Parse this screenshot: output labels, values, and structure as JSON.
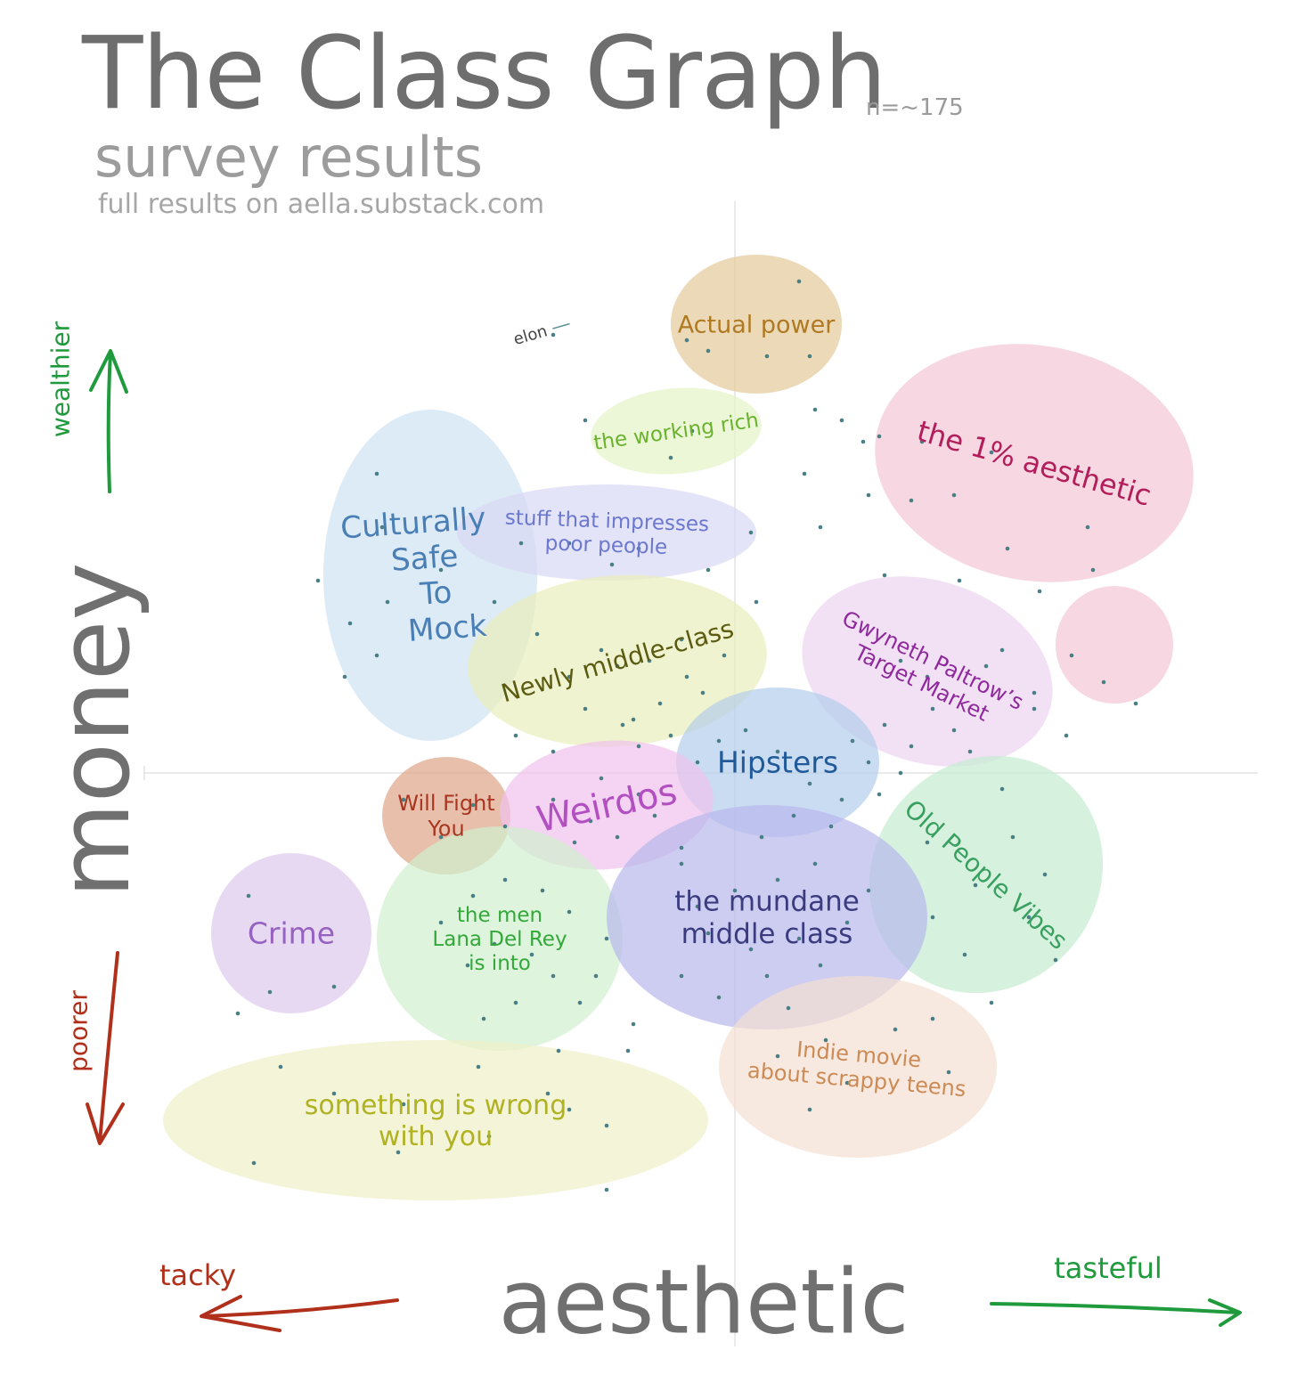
{
  "header": {
    "title": "The Class Graph",
    "n_count": "n=~175",
    "subtitle": "survey results",
    "source": "full results on aella.substack.com"
  },
  "axes": {
    "y_title": "money",
    "x_title": "aesthetic",
    "y_up_label": "wealthier",
    "y_down_label": "poorer",
    "x_left_label": "tacky",
    "x_right_label": "tasteful",
    "up_color": "#1f9a3c",
    "down_color": "#b0301b"
  },
  "chart_data": {
    "type": "scatter",
    "title": "The Class Graph",
    "subtitle": "survey results",
    "xlabel": "aesthetic",
    "ylabel": "money",
    "xlim": [
      -1,
      1
    ],
    "ylim": [
      -1,
      1
    ],
    "grid": false,
    "clusters": [
      {
        "id": "actual-power",
        "label": [
          "Actual power"
        ],
        "color": "#e3c999",
        "text_color": "#b07a22",
        "cx": 0.04,
        "cy": 0.84,
        "rx": 0.16,
        "ry": 0.13,
        "rot": 0
      },
      {
        "id": "working-rich",
        "label": [
          "the working rich"
        ],
        "color": "#e2f4c4",
        "text_color": "#6bb22f",
        "cx": -0.11,
        "cy": 0.64,
        "rx": 0.16,
        "ry": 0.08,
        "rot": -5
      },
      {
        "id": "one-percent",
        "label": [
          "the 1% aesthetic"
        ],
        "color": "#f2c6d5",
        "text_color": "#b21e5a",
        "cx": 0.56,
        "cy": 0.58,
        "rx": 0.3,
        "ry": 0.22,
        "rot": 10
      },
      {
        "id": "one-percent-blob",
        "label": [],
        "color": "#f2c6d5",
        "text_color": "#b21e5a",
        "cx": 0.71,
        "cy": 0.24,
        "rx": 0.11,
        "ry": 0.11,
        "rot": 0
      },
      {
        "id": "culturally-safe",
        "label": [
          "Culturally",
          "Safe",
          "To",
          "Mock"
        ],
        "color": "#cfe3f2",
        "text_color": "#4a7fb6",
        "cx": -0.57,
        "cy": 0.37,
        "rx": 0.2,
        "ry": 0.31,
        "rot": 0
      },
      {
        "id": "impresses-poor",
        "label": [
          "stuff that impresses",
          "poor people"
        ],
        "color": "#d8d8f5",
        "text_color": "#6c78cf",
        "cx": -0.24,
        "cy": 0.45,
        "rx": 0.28,
        "ry": 0.09,
        "rot": 0
      },
      {
        "id": "newly-middle",
        "label": [
          "Newly middle-class"
        ],
        "color": "#eaeebb",
        "text_color": "#5b5b12",
        "cx": -0.22,
        "cy": 0.21,
        "rx": 0.28,
        "ry": 0.16,
        "rot": -4
      },
      {
        "id": "gwyneth",
        "label": [
          "Gwyneth Paltrow’s",
          "Target Market"
        ],
        "color": "#ecd3ef",
        "text_color": "#8e2a9c",
        "cx": 0.36,
        "cy": 0.19,
        "rx": 0.24,
        "ry": 0.17,
        "rot": 18
      },
      {
        "id": "hipsters",
        "label": [
          "Hipsters"
        ],
        "color": "#b4cdeb",
        "text_color": "#215a98",
        "cx": 0.08,
        "cy": 0.02,
        "rx": 0.19,
        "ry": 0.14,
        "rot": 0
      },
      {
        "id": "will-fight",
        "label": [
          "Will Fight",
          "You"
        ],
        "color": "#dda487",
        "text_color": "#a83620",
        "cx": -0.54,
        "cy": -0.08,
        "rx": 0.12,
        "ry": 0.11,
        "rot": 0
      },
      {
        "id": "weirdos",
        "label": [
          "Weirdos"
        ],
        "color": "#f0c2ec",
        "text_color": "#b24fc1",
        "cx": -0.24,
        "cy": -0.06,
        "rx": 0.2,
        "ry": 0.12,
        "rot": -5
      },
      {
        "id": "old-people",
        "label": [
          "Old People Vibes"
        ],
        "color": "#c4ecd2",
        "text_color": "#3aa060",
        "cx": 0.47,
        "cy": -0.19,
        "rx": 0.21,
        "ry": 0.23,
        "rot": 40
      },
      {
        "id": "crime",
        "label": [
          "Crime"
        ],
        "color": "#ddc9ed",
        "text_color": "#9562c2",
        "cx": -0.83,
        "cy": -0.3,
        "rx": 0.15,
        "ry": 0.15,
        "rot": 0
      },
      {
        "id": "lana-del-rey",
        "label": [
          "the men",
          "Lana Del Rey",
          "is into"
        ],
        "color": "#d0efcd",
        "text_color": "#34a83a",
        "cx": -0.44,
        "cy": -0.31,
        "rx": 0.23,
        "ry": 0.21,
        "rot": 0
      },
      {
        "id": "mundane-middle",
        "label": [
          "the mundane",
          "middle class"
        ],
        "color": "#b8b8ec",
        "text_color": "#3b3b80",
        "cx": 0.06,
        "cy": -0.27,
        "rx": 0.3,
        "ry": 0.21,
        "rot": 0
      },
      {
        "id": "indie-movie",
        "label": [
          "Indie movie",
          "about scrappy teens"
        ],
        "color": "#f4dfd2",
        "text_color": "#cc8a55",
        "cx": 0.23,
        "cy": -0.55,
        "rx": 0.26,
        "ry": 0.17,
        "rot": 0
      },
      {
        "id": "something-wrong",
        "label": [
          "something is wrong",
          "with you"
        ],
        "color": "#f0f0c8",
        "text_color": "#b0b221",
        "cx": -0.56,
        "cy": -0.65,
        "rx": 0.51,
        "ry": 0.15,
        "rot": 0
      }
    ],
    "annotations": [
      {
        "text": "elon",
        "x": -0.38,
        "y": 0.81
      }
    ],
    "point_color": "#4a7f86",
    "points": [
      [
        -0.34,
        0.82
      ],
      [
        0.12,
        0.92
      ],
      [
        -0.05,
        0.79
      ],
      [
        0.06,
        0.78
      ],
      [
        -0.09,
        0.81
      ],
      [
        0.14,
        0.78
      ],
      [
        -0.28,
        0.66
      ],
      [
        -0.12,
        0.59
      ],
      [
        -0.08,
        0.64
      ],
      [
        0.15,
        0.68
      ],
      [
        0.2,
        0.66
      ],
      [
        0.27,
        0.63
      ],
      [
        0.41,
        0.52
      ],
      [
        0.13,
        0.56
      ],
      [
        0.24,
        0.62
      ],
      [
        0.35,
        0.62
      ],
      [
        0.48,
        0.6
      ],
      [
        0.33,
        0.51
      ],
      [
        0.25,
        0.52
      ],
      [
        0.16,
        0.46
      ],
      [
        0.28,
        0.37
      ],
      [
        0.66,
        0.46
      ],
      [
        0.51,
        0.42
      ],
      [
        0.42,
        0.36
      ],
      [
        0.67,
        0.38
      ],
      [
        0.57,
        0.34
      ],
      [
        -0.67,
        0.56
      ],
      [
        -0.66,
        0.46
      ],
      [
        -0.65,
        0.32
      ],
      [
        -0.73,
        0.18
      ],
      [
        -0.67,
        0.22
      ],
      [
        -0.78,
        0.36
      ],
      [
        -0.72,
        0.28
      ],
      [
        -0.55,
        0.38
      ],
      [
        -0.4,
        0.43
      ],
      [
        -0.31,
        0.43
      ],
      [
        -0.18,
        0.42
      ],
      [
        -0.23,
        0.39
      ],
      [
        -0.05,
        0.38
      ],
      [
        0.03,
        0.45
      ],
      [
        -0.45,
        0.32
      ],
      [
        -0.37,
        0.26
      ],
      [
        -0.31,
        0.18
      ],
      [
        -0.25,
        0.23
      ],
      [
        -0.21,
        0.09
      ],
      [
        -0.14,
        0.13
      ],
      [
        -0.22,
        0.2
      ],
      [
        -0.09,
        0.18
      ],
      [
        -0.06,
        0.15
      ],
      [
        -0.28,
        0.12
      ],
      [
        -0.34,
        0.04
      ],
      [
        -0.19,
        0.1
      ],
      [
        -0.12,
        0.07
      ],
      [
        -0.41,
        0.07
      ],
      [
        -0.1,
        0.25
      ],
      [
        -0.16,
        0.21
      ],
      [
        -0.02,
        0.22
      ],
      [
        -0.18,
        0.05
      ],
      [
        0.04,
        0.32
      ],
      [
        -0.03,
        0.06
      ],
      [
        -0.07,
        0.02
      ],
      [
        0.31,
        0.21
      ],
      [
        0.36,
        0.18
      ],
      [
        0.47,
        0.2
      ],
      [
        0.5,
        0.23
      ],
      [
        0.37,
        0.12
      ],
      [
        0.41,
        0.08
      ],
      [
        0.44,
        0.04
      ],
      [
        0.28,
        0.09
      ],
      [
        0.33,
        0.05
      ],
      [
        0.25,
        0.02
      ],
      [
        0.56,
        0.12
      ],
      [
        0.62,
        0.07
      ],
      [
        0.63,
        0.22
      ],
      [
        0.56,
        0.15
      ],
      [
        0.69,
        0.17
      ],
      [
        0.75,
        0.13
      ],
      [
        0.02,
        0.08
      ],
      [
        0.08,
        0.04
      ],
      [
        0.14,
        -0.02
      ],
      [
        0.2,
        -0.05
      ],
      [
        0.11,
        -0.08
      ],
      [
        0.05,
        -0.12
      ],
      [
        0.18,
        -0.1
      ],
      [
        0.27,
        -0.04
      ],
      [
        0.31,
        0.0
      ],
      [
        0.22,
        0.06
      ],
      [
        -0.62,
        -0.05
      ],
      [
        -0.55,
        -0.12
      ],
      [
        -0.49,
        -0.06
      ],
      [
        -0.43,
        -0.1
      ],
      [
        -0.34,
        -0.05
      ],
      [
        -0.27,
        -0.09
      ],
      [
        -0.22,
        -0.12
      ],
      [
        -0.15,
        -0.08
      ],
      [
        -0.1,
        -0.14
      ],
      [
        -0.25,
        -0.01
      ],
      [
        -0.3,
        -0.13
      ],
      [
        -0.18,
        -0.04
      ],
      [
        0.36,
        -0.13
      ],
      [
        0.45,
        -0.21
      ],
      [
        0.52,
        -0.12
      ],
      [
        0.55,
        -0.27
      ],
      [
        0.6,
        -0.35
      ],
      [
        0.43,
        -0.34
      ],
      [
        0.48,
        -0.43
      ],
      [
        0.37,
        -0.27
      ],
      [
        0.58,
        -0.19
      ],
      [
        0.5,
        -0.03
      ],
      [
        -0.91,
        -0.23
      ],
      [
        -0.75,
        -0.4
      ],
      [
        -0.93,
        -0.45
      ],
      [
        -0.87,
        -0.41
      ],
      [
        -0.55,
        -0.28
      ],
      [
        -0.49,
        -0.23
      ],
      [
        -0.43,
        -0.2
      ],
      [
        -0.36,
        -0.22
      ],
      [
        -0.31,
        -0.26
      ],
      [
        -0.45,
        -0.32
      ],
      [
        -0.38,
        -0.34
      ],
      [
        -0.34,
        -0.38
      ],
      [
        -0.5,
        -0.36
      ],
      [
        -0.41,
        -0.43
      ],
      [
        -0.29,
        -0.43
      ],
      [
        -0.24,
        -0.31
      ],
      [
        -0.26,
        -0.38
      ],
      [
        -0.47,
        -0.46
      ],
      [
        -0.33,
        -0.52
      ],
      [
        -0.19,
        -0.47
      ],
      [
        -0.2,
        -0.52
      ],
      [
        -0.1,
        -0.17
      ],
      [
        0.0,
        -0.22
      ],
      [
        0.08,
        -0.2
      ],
      [
        0.15,
        -0.17
      ],
      [
        0.21,
        -0.28
      ],
      [
        0.12,
        -0.31
      ],
      [
        0.03,
        -0.33
      ],
      [
        -0.05,
        -0.3
      ],
      [
        0.06,
        -0.38
      ],
      [
        0.16,
        -0.36
      ],
      [
        -0.1,
        -0.38
      ],
      [
        -0.03,
        -0.42
      ],
      [
        0.1,
        -0.44
      ],
      [
        -0.07,
        -0.25
      ],
      [
        0.25,
        -0.22
      ],
      [
        0.08,
        -0.53
      ],
      [
        0.21,
        -0.58
      ],
      [
        0.3,
        -0.48
      ],
      [
        0.4,
        -0.56
      ],
      [
        0.14,
        -0.63
      ],
      [
        0.37,
        -0.46
      ],
      [
        0.17,
        -0.5
      ],
      [
        -0.85,
        -0.55
      ],
      [
        -0.75,
        -0.6
      ],
      [
        -0.62,
        -0.62
      ],
      [
        -0.48,
        -0.55
      ],
      [
        -0.31,
        -0.63
      ],
      [
        -0.24,
        -0.66
      ],
      [
        -0.46,
        -0.68
      ],
      [
        -0.9,
        -0.73
      ],
      [
        -0.24,
        -0.78
      ],
      [
        -0.63,
        -0.71
      ],
      [
        -0.35,
        -0.6
      ]
    ]
  }
}
